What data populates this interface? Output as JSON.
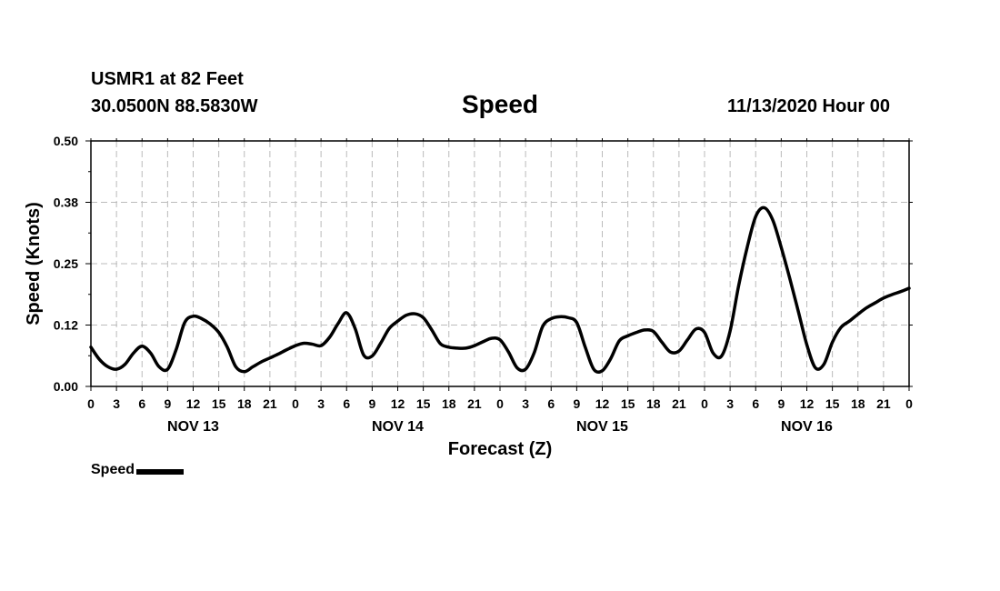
{
  "header": {
    "station": "USMR1 at 82 Feet",
    "coords": "30.0500N 88.5830W",
    "title": "Speed",
    "date": "11/13/2020 Hour 00"
  },
  "legend": {
    "label": "Speed",
    "color": "#000000"
  },
  "chart_data": {
    "type": "line",
    "title": "Speed",
    "xlabel": "Forecast (Z)",
    "ylabel": "Speed (Knots)",
    "xlim": [
      0,
      96
    ],
    "ylim": [
      0,
      0.5
    ],
    "x_unit": "hours from 11/13/2020 00Z",
    "y_ticks": [
      "0.00",
      "0.12",
      "0.25",
      "0.38",
      "0.50"
    ],
    "y_tick_values": [
      0,
      0.125,
      0.25,
      0.375,
      0.5
    ],
    "x_tick_labels": [
      "0",
      "3",
      "6",
      "9",
      "12",
      "15",
      "18",
      "21",
      "0",
      "3",
      "6",
      "9",
      "12",
      "15",
      "18",
      "21",
      "0",
      "3",
      "6",
      "9",
      "12",
      "15",
      "18",
      "21",
      "0",
      "3",
      "6",
      "9",
      "12",
      "15",
      "18",
      "21",
      "0"
    ],
    "day_labels": [
      "NOV 13",
      "NOV 14",
      "NOV 15",
      "NOV 16"
    ],
    "grid": true,
    "legend_position": "bottom-left",
    "series": [
      {
        "name": "Speed",
        "color": "#000000",
        "x": [
          0,
          1,
          2,
          3,
          4,
          5,
          6,
          7,
          8,
          9,
          10,
          11,
          12,
          13,
          14,
          15,
          16,
          17,
          18,
          19,
          20,
          21,
          22,
          23,
          24,
          25,
          26,
          27,
          28,
          29,
          30,
          31,
          32,
          33,
          34,
          35,
          36,
          37,
          38,
          39,
          40,
          41,
          42,
          43,
          44,
          45,
          46,
          47,
          48,
          49,
          50,
          51,
          52,
          53,
          54,
          55,
          56,
          57,
          58,
          59,
          60,
          61,
          62,
          63,
          64,
          65,
          66,
          67,
          68,
          69,
          70,
          71,
          72,
          73,
          74,
          75,
          76,
          77,
          78,
          79,
          80,
          81,
          82,
          83,
          84,
          85,
          86,
          87,
          88,
          89,
          90,
          91,
          92,
          93,
          94,
          95,
          96
        ],
        "values": [
          0.08,
          0.055,
          0.04,
          0.035,
          0.045,
          0.068,
          0.082,
          0.068,
          0.04,
          0.035,
          0.075,
          0.13,
          0.143,
          0.138,
          0.127,
          0.11,
          0.08,
          0.04,
          0.03,
          0.04,
          0.05,
          0.058,
          0.066,
          0.075,
          0.083,
          0.088,
          0.086,
          0.083,
          0.1,
          0.128,
          0.15,
          0.118,
          0.064,
          0.062,
          0.088,
          0.118,
          0.133,
          0.145,
          0.148,
          0.14,
          0.115,
          0.087,
          0.08,
          0.078,
          0.078,
          0.083,
          0.091,
          0.098,
          0.095,
          0.07,
          0.038,
          0.035,
          0.068,
          0.122,
          0.138,
          0.142,
          0.14,
          0.13,
          0.08,
          0.035,
          0.032,
          0.057,
          0.093,
          0.103,
          0.11,
          0.115,
          0.112,
          0.09,
          0.07,
          0.072,
          0.095,
          0.117,
          0.11,
          0.068,
          0.062,
          0.113,
          0.205,
          0.283,
          0.346,
          0.364,
          0.339,
          0.283,
          0.22,
          0.153,
          0.085,
          0.038,
          0.045,
          0.09,
          0.12,
          0.133,
          0.147,
          0.16,
          0.17,
          0.18,
          0.187,
          0.193,
          0.2
        ]
      }
    ]
  }
}
